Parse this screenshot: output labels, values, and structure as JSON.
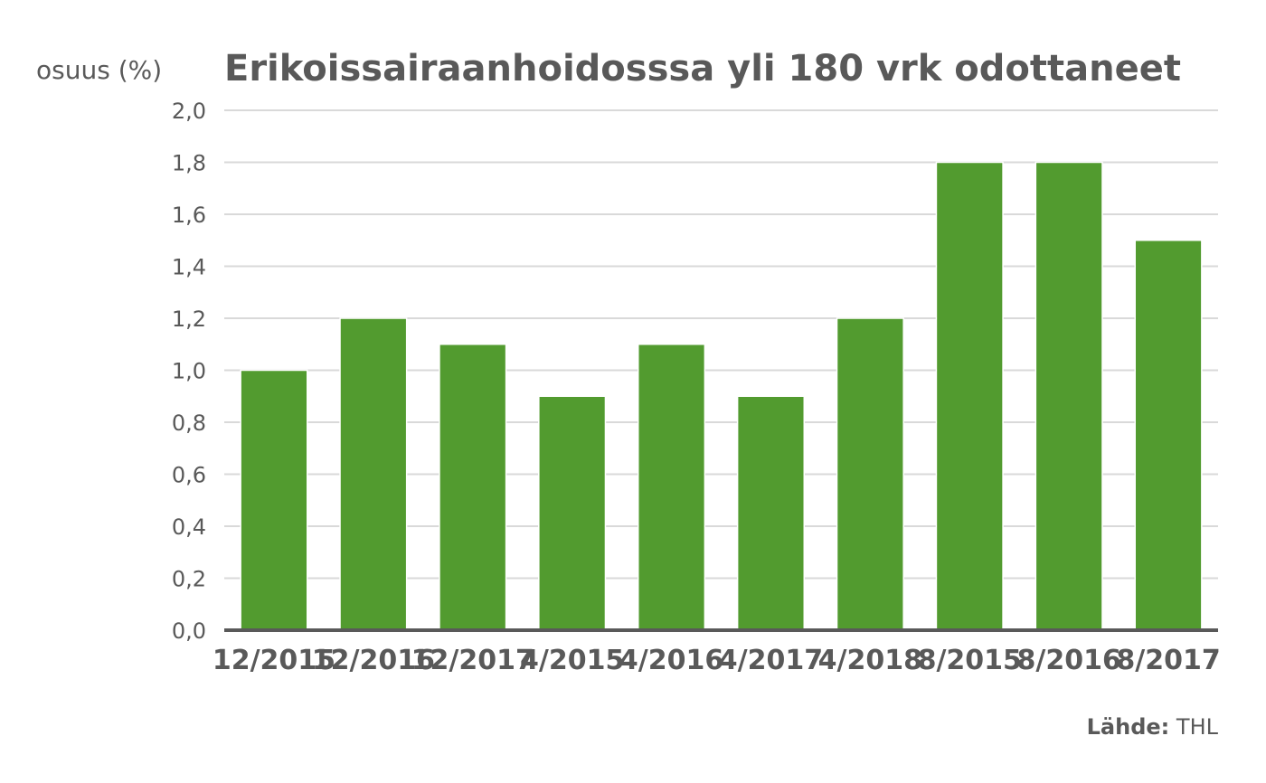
{
  "chart_data": {
    "type": "bar",
    "title": "Erikoissairaanhoidosssa yli 180 vrk odottaneet",
    "ylabel": "osuus (%)",
    "xlabel": "",
    "categories": [
      "12/2015",
      "12/2016",
      "12/2017",
      "4/2015",
      "4/2016",
      "4/2017",
      "4/2018",
      "8/2015",
      "8/2016",
      "8/2017"
    ],
    "values": [
      1.0,
      1.2,
      1.1,
      0.9,
      1.1,
      0.9,
      1.2,
      1.8,
      1.8,
      1.5
    ],
    "ylim": [
      0,
      2.0
    ],
    "yticks": [
      "0,0",
      "0,2",
      "0,4",
      "0,6",
      "0,8",
      "1,0",
      "1,2",
      "1,4",
      "1,6",
      "1,8",
      "2,0"
    ],
    "grid": true,
    "colors": {
      "bar": "#529b2f",
      "text": "#595959",
      "grid": "#d9d9d9",
      "axis": "#595959"
    }
  },
  "source": {
    "label": "Lähde:",
    "value": "THL"
  }
}
